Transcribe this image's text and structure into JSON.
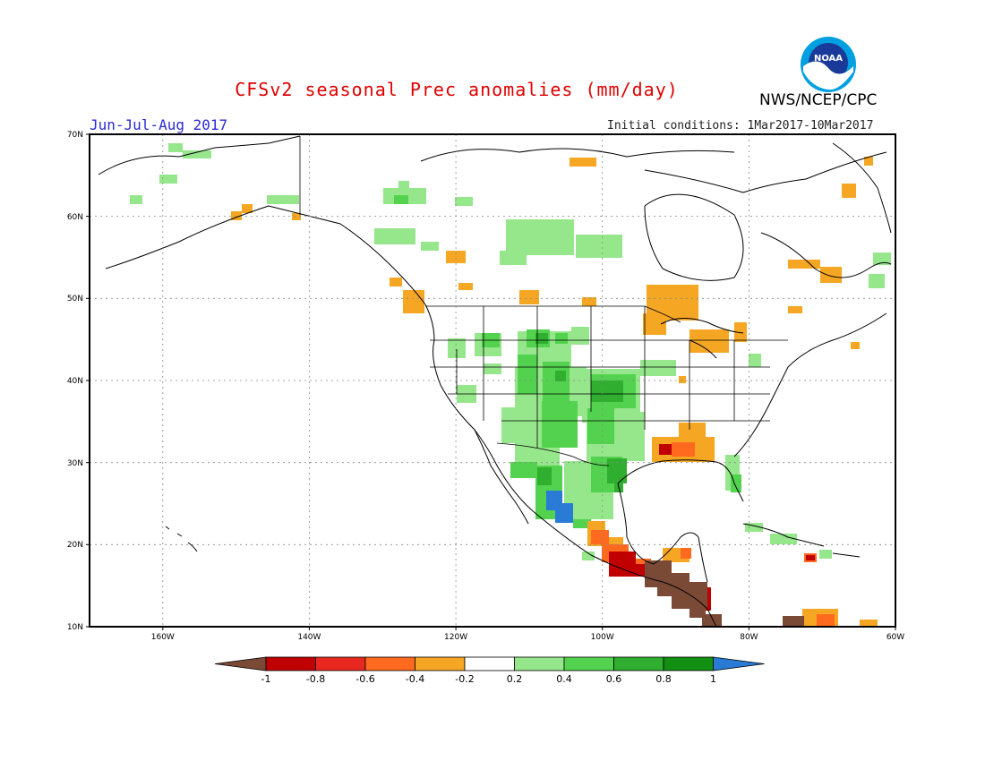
{
  "title": "CFSv2 seasonal Prec anomalies (mm/day)",
  "agency": "NWS/NCEP/CPC",
  "season": "Jun-Jul-Aug 2017",
  "initial_conditions": "Initial conditions: 1Mar2017-10Mar2017",
  "logo_text": "NOAA",
  "lat_labels": [
    "70N",
    "60N",
    "50N",
    "40N",
    "30N",
    "20N",
    "10N"
  ],
  "lon_labels": [
    "160W",
    "140W",
    "120W",
    "100W",
    "80W",
    "60W"
  ],
  "colorbar": {
    "labels": [
      "-1",
      "-0.8",
      "-0.6",
      "-0.4",
      "-0.2",
      "0.2",
      "0.4",
      "0.6",
      "0.8",
      "1"
    ],
    "colors": [
      "#7b4a37",
      "#c00000",
      "#e8281e",
      "#ff6a1e",
      "#f5a623",
      "#ffffff",
      "#96e68c",
      "#52d24e",
      "#2fae2f",
      "#129012",
      "#2a7bd6"
    ]
  },
  "anomaly_regions": [
    {
      "name": "Mexico Pacific coast dry",
      "level": "-1"
    },
    {
      "name": "Central America dry",
      "level": "-1"
    },
    {
      "name": "Southeast US dry",
      "level": "-0.4"
    },
    {
      "name": "Great Lakes dry",
      "level": "-0.4"
    },
    {
      "name": "Western Mexico wet",
      "level": "1"
    },
    {
      "name": "Central Plains wet",
      "level": "0.6"
    },
    {
      "name": "Texas wet",
      "level": "0.8"
    }
  ]
}
